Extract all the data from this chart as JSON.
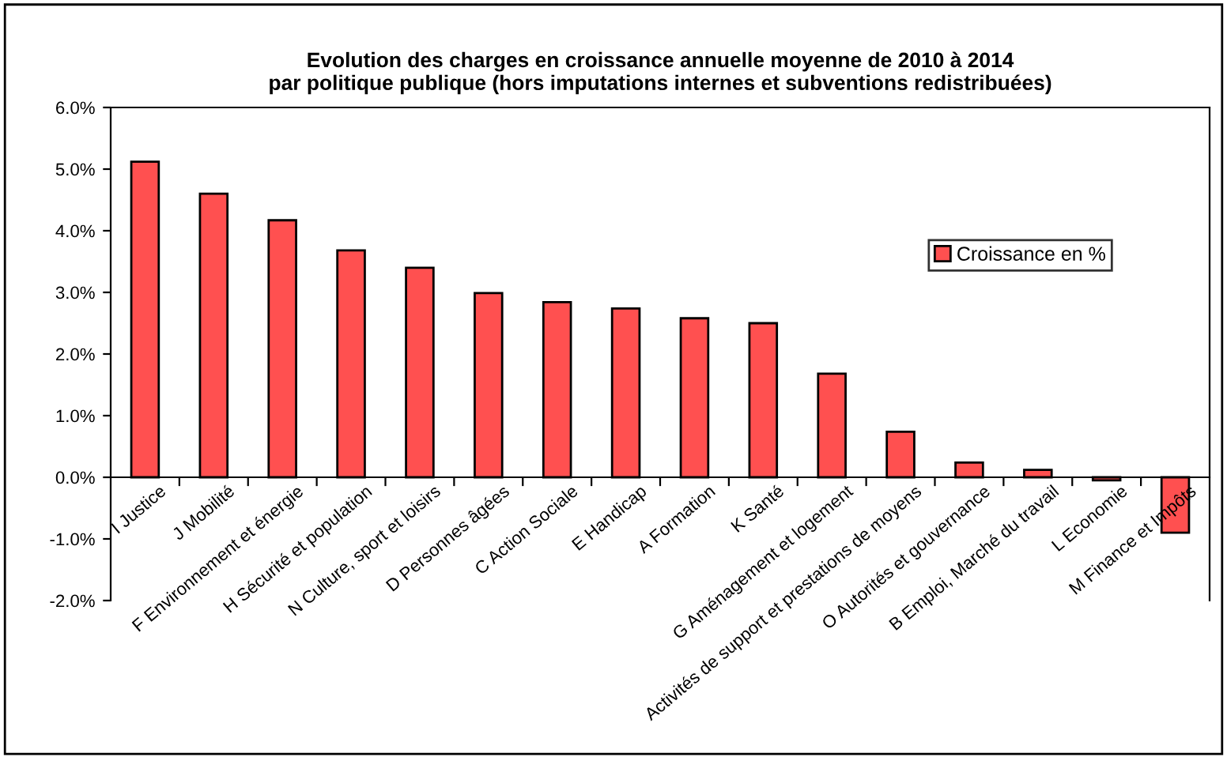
{
  "chart_data": {
    "type": "bar",
    "title": "Evolution des charges en croissance annuelle moyenne de 2010 à 2014\npar politique publique (hors imputations internes et subventions redistribuées)",
    "categories": [
      "I Justice",
      "J Mobilité",
      "F Environnement et énergie",
      "H Sécurité et population",
      "N Culture, sport et loisirs",
      "D Personnes âgées",
      "C Action Sociale",
      "E Handicap",
      "A Formation",
      "K Santé",
      "G Aménagement et logement",
      "Activités de support et prestations de moyens",
      "O Autorités et gouvernance",
      "B Emploi, Marché du travail",
      "L Economie",
      "M Finance et Impôts"
    ],
    "series": [
      {
        "name": "Croissance en %",
        "color": "#ff5050",
        "values": [
          5.12,
          4.6,
          4.17,
          3.68,
          3.4,
          2.99,
          2.84,
          2.74,
          2.58,
          2.5,
          1.68,
          0.74,
          0.24,
          0.12,
          -0.05,
          -0.9
        ]
      }
    ],
    "ylim": [
      -2,
      6
    ],
    "yticks": [
      {
        "value": -2,
        "label": "-2.0%"
      },
      {
        "value": -1,
        "label": "-1.0%"
      },
      {
        "value": 0,
        "label": "0.0%"
      },
      {
        "value": 1,
        "label": "1.0%"
      },
      {
        "value": 2,
        "label": "2.0%"
      },
      {
        "value": 3,
        "label": "3.0%"
      },
      {
        "value": 4,
        "label": "4.0%"
      },
      {
        "value": 5,
        "label": "5.0%"
      },
      {
        "value": 6,
        "label": "6.0%"
      }
    ],
    "grid": false,
    "legend": "right"
  }
}
